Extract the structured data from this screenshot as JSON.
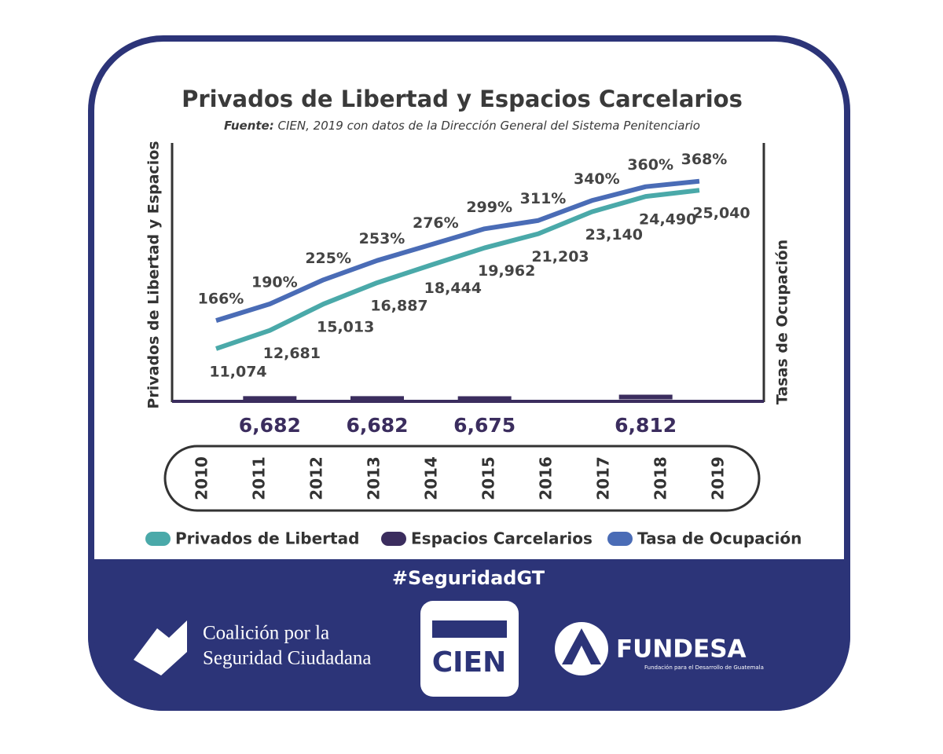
{
  "chart_data": {
    "type": "line",
    "title": "Privados de Libertad y Espacios Carcelarios",
    "source_label": "Fuente:",
    "subtitle": "CIEN, 2019 con datos de la Dirección General del Sistema Penitenciario",
    "y_label": "Privados de Libertad y Espacios",
    "y2_label": "Tasas de Ocupación",
    "categories": [
      "2010",
      "2011",
      "2012",
      "2013",
      "2014",
      "2015",
      "2016",
      "2017",
      "2018",
      "2019"
    ],
    "ylim": [
      6500,
      29000
    ],
    "y2lim": [
      50,
      420
    ],
    "series": [
      {
        "name": "Privados de Libertad",
        "color": "#4aa9a9",
        "values": [
          11074,
          12681,
          15013,
          16887,
          18444,
          19962,
          21203,
          23140,
          24490,
          25040
        ],
        "value_labels": [
          "11,074",
          "12,681",
          "15,013",
          "16,887",
          "18,444",
          "19,962",
          "21,203",
          "23,140",
          "24,490",
          "25,040"
        ]
      },
      {
        "name": "Espacios Carcelarios",
        "color": "#3b2d5e",
        "values": [
          null,
          6682,
          null,
          6682,
          null,
          6675,
          null,
          null,
          6812,
          null
        ],
        "value_labels": [
          null,
          "6,682",
          null,
          "6,682",
          null,
          "6,675",
          null,
          null,
          "6,812",
          null
        ]
      },
      {
        "name": "Tasa de Ocupación",
        "color": "#4a6cb6",
        "axis": "y2",
        "values": [
          166,
          190,
          225,
          253,
          276,
          299,
          311,
          340,
          360,
          368
        ],
        "value_labels": [
          "166%",
          "190%",
          "225%",
          "253%",
          "276%",
          "299%",
          "311%",
          "340%",
          "360%",
          "368%"
        ]
      }
    ]
  },
  "footer": {
    "hashtag": "#SeguridadGT",
    "coalition_line1": "Coalición por la",
    "coalition_line2": "Seguridad Ciudadana",
    "cien": "CIEN",
    "fundesa": "FUNDESA",
    "fundesa_sub": "Fundación para el Desarrollo de Guatemala"
  }
}
